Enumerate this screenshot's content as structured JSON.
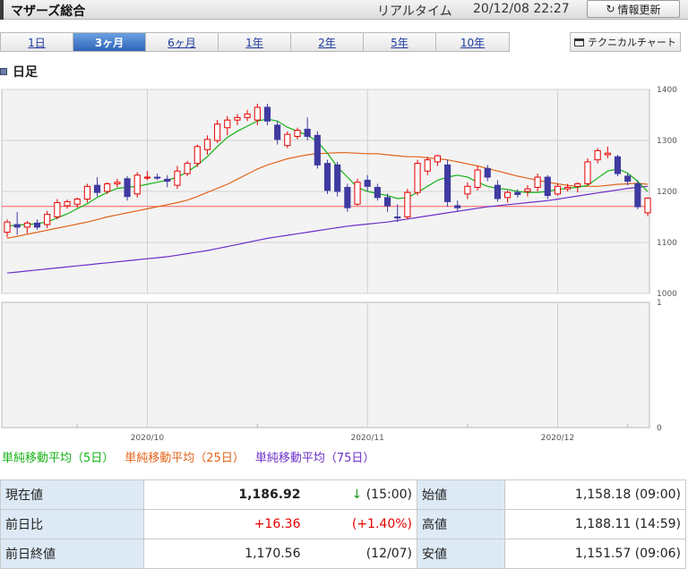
{
  "header": {
    "title": "マザーズ総合",
    "realtime_label": "リアルタイム",
    "timestamp": "20/12/08 22:27",
    "refresh_label": "情報更新"
  },
  "tabs": [
    "1日",
    "3ヶ月",
    "6ヶ月",
    "1年",
    "2年",
    "5年",
    "10年"
  ],
  "active_tab": "3ヶ月",
  "tech_chart_label": "テクニカルチャート",
  "section_title": "日足",
  "legend": {
    "ma5": "単純移動平均（5日）",
    "ma25": "単純移動平均（25日）",
    "ma75": "単純移動平均（75日）"
  },
  "colors": {
    "up": "#e60000",
    "down": "#3e3aa0",
    "ma5": "#16b316",
    "ma25": "#e2631a",
    "ma75": "#6d2fc8",
    "prev_close_line": "#ff5a5a"
  },
  "chart_data": {
    "type": "candlestick",
    "ylim": [
      1000,
      1400
    ],
    "yticks": [
      "1000",
      "1100",
      "1200",
      "1300",
      "1400"
    ],
    "sub_yticks": [
      "0",
      "1"
    ],
    "x_labels": [
      {
        "label": "2020/10",
        "index": 14
      },
      {
        "label": "2020/11",
        "index": 36
      },
      {
        "label": "2020/12",
        "index": 55
      }
    ],
    "prev_close": 1170.56,
    "candles": [
      [
        1120,
        1145,
        1110,
        1140
      ],
      [
        1135,
        1160,
        1115,
        1130
      ],
      [
        1130,
        1142,
        1118,
        1138
      ],
      [
        1138,
        1145,
        1125,
        1130
      ],
      [
        1135,
        1162,
        1128,
        1155
      ],
      [
        1150,
        1185,
        1145,
        1178
      ],
      [
        1172,
        1184,
        1166,
        1180
      ],
      [
        1175,
        1188,
        1168,
        1185
      ],
      [
        1185,
        1215,
        1178,
        1210
      ],
      [
        1212,
        1228,
        1190,
        1198
      ],
      [
        1200,
        1218,
        1195,
        1215
      ],
      [
        1215,
        1225,
        1208,
        1218
      ],
      [
        1225,
        1230,
        1182,
        1190
      ],
      [
        1195,
        1238,
        1188,
        1232
      ],
      [
        1228,
        1240,
        1222,
        1228
      ],
      [
        1228,
        1235,
        1222,
        1226
      ],
      [
        1224,
        1232,
        1208,
        1220
      ],
      [
        1212,
        1250,
        1205,
        1240
      ],
      [
        1235,
        1260,
        1230,
        1255
      ],
      [
        1255,
        1292,
        1248,
        1288
      ],
      [
        1282,
        1310,
        1272,
        1302
      ],
      [
        1300,
        1340,
        1295,
        1332
      ],
      [
        1325,
        1348,
        1310,
        1340
      ],
      [
        1340,
        1352,
        1330,
        1345
      ],
      [
        1345,
        1360,
        1338,
        1352
      ],
      [
        1340,
        1372,
        1330,
        1365
      ],
      [
        1365,
        1372,
        1330,
        1338
      ],
      [
        1330,
        1338,
        1292,
        1302
      ],
      [
        1290,
        1318,
        1285,
        1312
      ],
      [
        1308,
        1325,
        1302,
        1320
      ],
      [
        1322,
        1345,
        1300,
        1308
      ],
      [
        1310,
        1318,
        1245,
        1252
      ],
      [
        1255,
        1262,
        1195,
        1202
      ],
      [
        1252,
        1258,
        1190,
        1200
      ],
      [
        1208,
        1215,
        1160,
        1168
      ],
      [
        1175,
        1225,
        1172,
        1218
      ],
      [
        1222,
        1232,
        1200,
        1210
      ],
      [
        1208,
        1215,
        1182,
        1188
      ],
      [
        1188,
        1196,
        1160,
        1172
      ],
      [
        1150,
        1175,
        1140,
        1148
      ],
      [
        1150,
        1205,
        1145,
        1198
      ],
      [
        1198,
        1262,
        1192,
        1255
      ],
      [
        1240,
        1268,
        1232,
        1262
      ],
      [
        1258,
        1272,
        1250,
        1270
      ],
      [
        1252,
        1262,
        1170,
        1180
      ],
      [
        1172,
        1182,
        1160,
        1168
      ],
      [
        1195,
        1218,
        1185,
        1210
      ],
      [
        1208,
        1250,
        1202,
        1242
      ],
      [
        1245,
        1252,
        1220,
        1228
      ],
      [
        1212,
        1222,
        1180,
        1186
      ],
      [
        1188,
        1202,
        1178,
        1198
      ],
      [
        1198,
        1204,
        1188,
        1194
      ],
      [
        1200,
        1212,
        1190,
        1205
      ],
      [
        1208,
        1235,
        1200,
        1228
      ],
      [
        1228,
        1232,
        1185,
        1192
      ],
      [
        1195,
        1215,
        1192,
        1210
      ],
      [
        1205,
        1215,
        1200,
        1208
      ],
      [
        1210,
        1218,
        1198,
        1215
      ],
      [
        1215,
        1265,
        1212,
        1258
      ],
      [
        1262,
        1285,
        1255,
        1280
      ],
      [
        1272,
        1288,
        1265,
        1275
      ],
      [
        1268,
        1272,
        1230,
        1235
      ],
      [
        1230,
        1235,
        1212,
        1220
      ],
      [
        1215,
        1222,
        1165,
        1170
      ],
      [
        1158.18,
        1188.11,
        1151.57,
        1186.92
      ]
    ],
    "ma5": [
      1132,
      1134,
      1135,
      1137,
      1140,
      1148,
      1156,
      1166,
      1176,
      1188,
      1198,
      1206,
      1208,
      1210,
      1214,
      1218,
      1222,
      1228,
      1238,
      1252,
      1268,
      1288,
      1306,
      1318,
      1328,
      1338,
      1342,
      1338,
      1326,
      1318,
      1310,
      1298,
      1275,
      1248,
      1228,
      1208,
      1200,
      1196,
      1192,
      1186,
      1188,
      1198,
      1210,
      1222,
      1228,
      1232,
      1228,
      1218,
      1210,
      1206,
      1204,
      1200,
      1198,
      1198,
      1200,
      1204,
      1206,
      1208,
      1212,
      1226,
      1240,
      1244,
      1236,
      1220,
      1200
    ],
    "ma25": [
      1108,
      1112,
      1116,
      1120,
      1124,
      1128,
      1132,
      1136,
      1140,
      1145,
      1150,
      1154,
      1158,
      1162,
      1166,
      1170,
      1174,
      1178,
      1183,
      1190,
      1198,
      1206,
      1214,
      1224,
      1234,
      1244,
      1252,
      1258,
      1264,
      1268,
      1272,
      1274,
      1275,
      1276,
      1276,
      1275,
      1274,
      1274,
      1272,
      1270,
      1268,
      1268,
      1266,
      1264,
      1262,
      1258,
      1254,
      1250,
      1245,
      1240,
      1235,
      1230,
      1226,
      1222,
      1218,
      1215,
      1212,
      1210,
      1210,
      1210,
      1212,
      1214,
      1215,
      1216,
      1214
    ],
    "ma75": [
      1040,
      1042,
      1044,
      1046,
      1048,
      1050,
      1052,
      1054,
      1056,
      1058,
      1060,
      1062,
      1064,
      1066,
      1068,
      1070,
      1072,
      1075,
      1078,
      1081,
      1084,
      1088,
      1092,
      1096,
      1100,
      1104,
      1108,
      1111,
      1114,
      1117,
      1120,
      1123,
      1126,
      1129,
      1132,
      1134,
      1136,
      1138,
      1140,
      1143,
      1146,
      1149,
      1152,
      1155,
      1158,
      1161,
      1164,
      1167,
      1170,
      1172,
      1174,
      1176,
      1178,
      1180,
      1182,
      1185,
      1188,
      1191,
      1194,
      1197,
      1200,
      1203,
      1206,
      1208,
      1210
    ]
  },
  "quote": {
    "current": {
      "label": "現在値",
      "value": "1,186.92",
      "arrow": "↓",
      "time": "(15:00)"
    },
    "change": {
      "label": "前日比",
      "value": "+16.36",
      "pct": "(+1.40%)"
    },
    "prev_close": {
      "label": "前日終値",
      "value": "1,170.56",
      "date": "(12/07)"
    },
    "open": {
      "label": "始値",
      "value": "1,158.18 (09:00)"
    },
    "high": {
      "label": "高値",
      "value": "1,188.11 (14:59)"
    },
    "low": {
      "label": "安値",
      "value": "1,151.57 (09:06)"
    }
  }
}
